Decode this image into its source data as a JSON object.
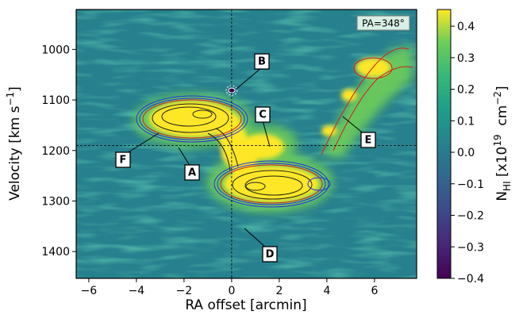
{
  "chart_data": {
    "type": "heatmap",
    "annotation": "PA=348°",
    "xlabel": "RA offset [arcmin]",
    "ylabel": {
      "main": "Velocity [km s",
      "exp": "−1",
      "close": "]"
    },
    "xlim": [
      -6.53,
      7.77
    ],
    "ylim": [
      1453,
      921
    ],
    "xticks": [
      {
        "value": -6,
        "label": "−6"
      },
      {
        "value": -4,
        "label": "−4"
      },
      {
        "value": -2,
        "label": "−2"
      },
      0,
      2,
      4,
      6
    ],
    "yticks": [
      1000,
      1100,
      1200,
      1300,
      1400
    ],
    "reference_lines": {
      "x": 0,
      "y": 1190
    },
    "features": [
      "A",
      "B",
      "C",
      "D",
      "E",
      "F"
    ],
    "colorbar": {
      "colormap": "viridis",
      "lim": [
        -0.4,
        0.453
      ],
      "ticks": [
        0.4,
        0.3,
        0.2,
        0.1,
        0.0,
        {
          "value": -0.1,
          "label": "−0.1"
        },
        {
          "value": -0.2,
          "label": "−0.2"
        },
        {
          "value": -0.3,
          "label": "−0.3"
        },
        {
          "value": -0.4,
          "label": "−0.4"
        }
      ],
      "label": {
        "main": "N",
        "sub": "HI",
        "mid": " [x10",
        "exp": "19",
        "unit": "  cm",
        "unitexp": "−2",
        "close": "]"
      }
    }
  }
}
